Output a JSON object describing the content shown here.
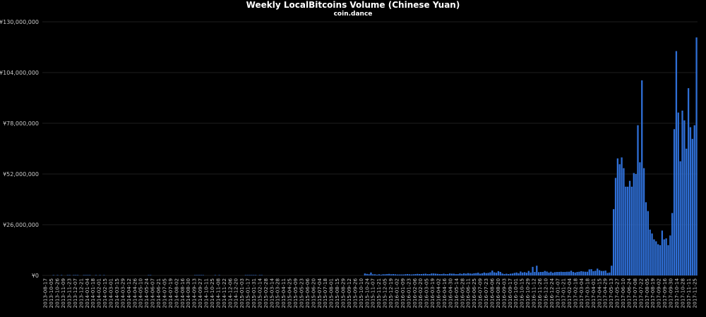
{
  "chart_data": {
    "type": "bar",
    "title": "Weekly LocalBitcoins Volume (Chinese Yuan)",
    "subtitle": "coin.dance",
    "ylim": [
      0,
      130000000
    ],
    "yticks": [
      0,
      26000000,
      52000000,
      78000000,
      104000000,
      130000000
    ],
    "ytick_labels": [
      "¥0",
      "¥26,000,000",
      "¥52,000,000",
      "¥78,000,000",
      "¥104,000,000",
      "¥130,000,000"
    ],
    "bar_color": "#2f6fd6",
    "grid_color": "#1e1e1e",
    "grid": true,
    "xtick_labels": [
      "2013-08-17",
      "2013-10-05",
      "2013-10-26",
      "2013-11-09",
      "2013-11-23",
      "2013-12-07",
      "2013-12-21",
      "2014-01-04",
      "2014-01-18",
      "2014-02-01",
      "2014-02-15",
      "2014-03-01",
      "2014-03-15",
      "2014-03-29",
      "2014-04-12",
      "2014-04-26",
      "2014-05-10",
      "2014-05-24",
      "2014-06-07",
      "2014-06-21",
      "2014-07-05",
      "2014-07-19",
      "2014-08-02",
      "2014-08-16",
      "2014-08-30",
      "2014-09-13",
      "2014-09-27",
      "2014-10-11",
      "2014-10-25",
      "2014-11-08",
      "2014-11-22",
      "2014-12-06",
      "2014-12-20",
      "2015-01-03",
      "2015-01-17",
      "2015-01-31",
      "2015-02-14",
      "2015-02-28",
      "2015-03-14",
      "2015-03-28",
      "2015-04-11",
      "2015-04-25",
      "2015-05-09",
      "2015-05-23",
      "2015-06-06",
      "2015-06-20",
      "2015-07-04",
      "2015-07-18",
      "2015-08-01",
      "2015-08-15",
      "2015-08-29",
      "2015-09-12",
      "2015-09-26",
      "2015-10-10",
      "2015-10-24",
      "2015-11-07",
      "2015-11-21",
      "2015-12-05",
      "2015-12-19",
      "2016-01-02",
      "2016-01-09",
      "2016-01-23",
      "2016-02-06",
      "2016-02-20",
      "2016-03-05",
      "2016-03-19",
      "2016-04-02",
      "2016-04-16",
      "2016-04-30",
      "2016-05-14",
      "2016-05-28",
      "2016-06-11",
      "2016-06-25",
      "2016-07-09",
      "2016-07-23",
      "2016-08-06",
      "2016-08-20",
      "2016-09-03",
      "2016-09-17",
      "2016-10-01",
      "2016-10-15",
      "2016-10-29",
      "2016-11-12",
      "2016-11-26",
      "2016-12-10",
      "2016-12-24",
      "2017-01-07",
      "2017-01-21",
      "2017-02-04",
      "2017-02-18",
      "2017-03-04",
      "2017-03-18",
      "2017-04-01",
      "2017-04-15",
      "2017-04-29",
      "2017-05-13",
      "2017-05-27",
      "2017-06-10",
      "2017-06-24",
      "2017-07-08",
      "2017-07-22",
      "2017-08-05",
      "2017-08-19",
      "2017-09-02",
      "2017-09-16",
      "2017-09-30",
      "2017-10-14",
      "2017-10-28",
      "2017-11-11",
      "2017-11-25"
    ],
    "values": [
      0,
      0,
      0,
      0,
      0,
      200000,
      0,
      200000,
      0,
      200000,
      0,
      0,
      200000,
      200000,
      0,
      200000,
      200000,
      200000,
      0,
      0,
      200000,
      200000,
      200000,
      200000,
      0,
      0,
      200000,
      0,
      200000,
      0,
      200000,
      0,
      0,
      0,
      0,
      0,
      0,
      0,
      0,
      0,
      0,
      0,
      0,
      0,
      0,
      0,
      0,
      0,
      0,
      0,
      0,
      0,
      200000,
      200000,
      0,
      0,
      0,
      0,
      0,
      0,
      0,
      0,
      0,
      0,
      0,
      0,
      0,
      0,
      0,
      0,
      0,
      0,
      0,
      0,
      0,
      200000,
      200000,
      200000,
      200000,
      200000,
      0,
      0,
      0,
      0,
      0,
      200000,
      0,
      200000,
      0,
      0,
      0,
      0,
      0,
      0,
      0,
      0,
      0,
      0,
      0,
      0,
      200000,
      200000,
      200000,
      200000,
      200000,
      200000,
      0,
      200000,
      200000,
      0,
      0,
      0,
      0,
      0,
      0,
      0,
      0,
      0,
      0,
      0,
      0,
      0,
      0,
      0,
      0,
      0,
      0,
      0,
      0,
      0,
      0,
      0,
      0,
      0,
      0,
      0,
      0,
      0,
      0,
      0,
      0,
      0,
      0,
      0,
      0,
      0,
      0,
      0,
      0,
      0,
      0,
      0,
      0,
      0,
      0,
      0,
      0,
      0,
      0,
      1000000,
      800000,
      600000,
      1500000,
      600000,
      600000,
      400000,
      600000,
      400000,
      600000,
      600000,
      700000,
      800000,
      600000,
      700000,
      600000,
      500000,
      500000,
      500000,
      500000,
      600000,
      700000,
      600000,
      500000,
      600000,
      700000,
      800000,
      700000,
      700000,
      800000,
      900000,
      700000,
      700000,
      1000000,
      1000000,
      900000,
      800000,
      700000,
      700000,
      900000,
      700000,
      700000,
      1000000,
      900000,
      900000,
      700000,
      700000,
      1000000,
      800000,
      1100000,
      900000,
      1200000,
      1000000,
      900000,
      1100000,
      1200000,
      1400000,
      900000,
      1100000,
      1500000,
      1200000,
      1300000,
      1600000,
      2500000,
      1600000,
      1400000,
      2200000,
      1800000,
      1000000,
      700000,
      900000,
      700000,
      900000,
      1000000,
      1300000,
      1500000,
      1100000,
      2000000,
      1500000,
      1700000,
      1400000,
      2300000,
      1500000,
      4400000,
      1800000,
      5000000,
      1700000,
      1800000,
      1800000,
      2300000,
      2000000,
      1500000,
      1900000,
      1400000,
      1700000,
      1800000,
      1800000,
      1900000,
      1800000,
      1800000,
      1900000,
      1900000,
      2400000,
      1800000,
      1500000,
      1800000,
      1900000,
      2200000,
      2000000,
      1900000,
      1900000,
      3100000,
      3200000,
      2200000,
      2400000,
      3500000,
      2700000,
      2300000,
      2300000,
      2500000,
      1300000,
      1500000,
      5000000,
      34000000,
      50000000,
      60000000,
      57000000,
      60500000,
      55000000,
      45500000,
      45500000,
      48500000,
      45500000,
      52500000,
      52000000,
      77000000,
      58000000,
      100000000,
      55000000,
      37500000,
      33000000,
      23500000,
      21500000,
      18500000,
      17500000,
      16000000,
      15500000,
      23000000,
      18500000,
      19000000,
      15500000,
      20500000,
      32000000,
      75000000,
      115000000,
      83500000,
      58500000,
      84500000,
      79500000,
      65000000,
      96000000,
      76000000,
      70000000,
      77000000,
      122000000
    ]
  }
}
